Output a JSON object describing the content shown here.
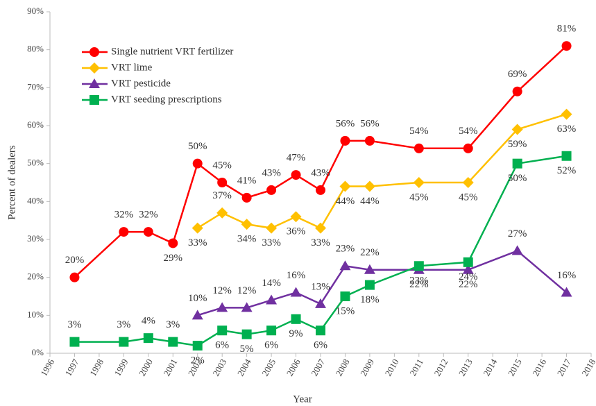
{
  "chart_data": {
    "type": "line",
    "x_label": "Year",
    "y_label": "Percent of dealers",
    "xlim": [
      1996,
      2018
    ],
    "xticks": [
      1996,
      1997,
      1998,
      1999,
      2000,
      2001,
      2002,
      2003,
      2004,
      2005,
      2006,
      2007,
      2008,
      2009,
      2010,
      2011,
      2012,
      2013,
      2014,
      2015,
      2016,
      2017,
      2018
    ],
    "ylim": [
      0,
      90
    ],
    "yticks": [
      {
        "value": 0,
        "label": "0%"
      },
      {
        "value": 10,
        "label": "10%"
      },
      {
        "value": 20,
        "label": "20%"
      },
      {
        "value": 30,
        "label": "30%"
      },
      {
        "value": 40,
        "label": "40%"
      },
      {
        "value": 50,
        "label": "50%"
      },
      {
        "value": 60,
        "label": "60%"
      },
      {
        "value": 70,
        "label": "70%"
      },
      {
        "value": 80,
        "label": "80%"
      },
      {
        "value": 90,
        "label": "90%"
      }
    ],
    "grid": false,
    "legend": "upper left",
    "series": [
      {
        "name": "Single nutrient VRT fertilizer",
        "color": "#ff0000",
        "marker": "circle",
        "x": [
          1997,
          1999,
          2000,
          2001,
          2002,
          2003,
          2004,
          2005,
          2006,
          2007,
          2008,
          2009,
          2011,
          2013,
          2015,
          2017
        ],
        "values": [
          20,
          32,
          32,
          29,
          50,
          45,
          41,
          43,
          47,
          43,
          56,
          56,
          54,
          54,
          69,
          81
        ],
        "value_labels": [
          "20%",
          "32%",
          "32%",
          "29%",
          "50%",
          "45%",
          "41%",
          "43%",
          "47%",
          "43%",
          "56%",
          "56%",
          "54%",
          "54%",
          "69%",
          "81%"
        ]
      },
      {
        "name": "VRT lime",
        "color": "#ffc000",
        "marker": "diamond",
        "x": [
          2002,
          2003,
          2004,
          2005,
          2006,
          2007,
          2008,
          2009,
          2011,
          2013,
          2015,
          2017
        ],
        "values": [
          33,
          37,
          34,
          33,
          36,
          33,
          44,
          44,
          45,
          45,
          59,
          63
        ],
        "value_labels": [
          "33%",
          "37%",
          "34%",
          "33%",
          "36%",
          "33%",
          "44%",
          "44%",
          "45%",
          "45%",
          "59%",
          "63%"
        ]
      },
      {
        "name": "VRT pesticide",
        "color": "#7030a0",
        "marker": "triangle",
        "x": [
          2002,
          2003,
          2004,
          2005,
          2006,
          2007,
          2008,
          2009,
          2011,
          2013,
          2015,
          2017
        ],
        "values": [
          10,
          12,
          12,
          14,
          16,
          13,
          23,
          22,
          22,
          22,
          27,
          16
        ],
        "value_labels": [
          "10%",
          "12%",
          "12%",
          "14%",
          "16%",
          "13%",
          "23%",
          "22%",
          "22%",
          "22%",
          "27%",
          "16%"
        ]
      },
      {
        "name": "VRT seeding prescriptions",
        "color": "#00b050",
        "marker": "square",
        "x": [
          1997,
          1999,
          2000,
          2001,
          2002,
          2003,
          2004,
          2005,
          2006,
          2007,
          2008,
          2009,
          2011,
          2013,
          2015,
          2017
        ],
        "values": [
          3,
          3,
          4,
          3,
          2,
          6,
          5,
          6,
          9,
          6,
          15,
          18,
          23,
          24,
          50,
          52
        ],
        "value_labels": [
          "3%",
          "3%",
          "4%",
          "3%",
          "2%",
          "6%",
          "5%",
          "6%",
          "9%",
          "6%",
          "15%",
          "18%",
          "23%",
          "24%",
          "50%",
          "52%"
        ]
      }
    ]
  }
}
